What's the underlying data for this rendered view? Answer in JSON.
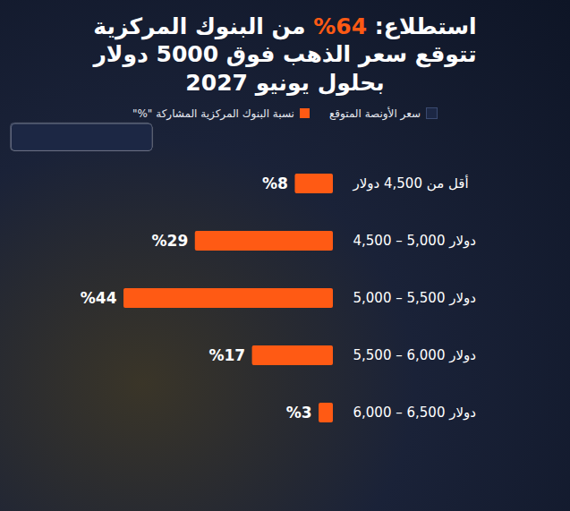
{
  "chart_data": {
    "type": "bar",
    "orientation": "horizontal",
    "title": "استطلاع: 64% من البنوك المركزية تتوقع سعر الذهب فوق 5000 دولار بحلول يونيو 2027",
    "ylabel": "سعر الأونصة المتوقع",
    "categories": [
      "أقل من 4,500 دولار",
      "4,500 – 5,000 دولار",
      "5,000 – 5,500 دولار",
      "5,500 – 6,000 دولار",
      "6,000 – 6,500 دولار"
    ],
    "series": [
      {
        "name": "نسبة البنوك المركزية المشاركة \"%\"",
        "color": "#ff5a14",
        "values": [
          8,
          29,
          44,
          17,
          3
        ],
        "value_labels": [
          "%8",
          "%29",
          "%44",
          "%17",
          "%3"
        ]
      }
    ],
    "xlim": [
      0,
      44
    ],
    "data_labels": true,
    "tick_labels": "y",
    "legend": "top",
    "grid": false
  }
}
